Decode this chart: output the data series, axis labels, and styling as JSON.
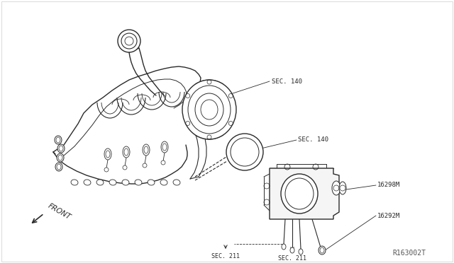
{
  "bg_color": "#ffffff",
  "line_color": "#2a2a2a",
  "labels": {
    "sec140_top": "SEC. 140",
    "sec140_mid": "SEC. 140",
    "l16298m": "16298M",
    "l16292m": "16292M",
    "sec211_left": "SEC. 211",
    "sec211_right": "SEC. 211",
    "front": "FRONT",
    "ref": "R163002T"
  },
  "figsize": [
    6.4,
    3.72
  ],
  "dpi": 100
}
